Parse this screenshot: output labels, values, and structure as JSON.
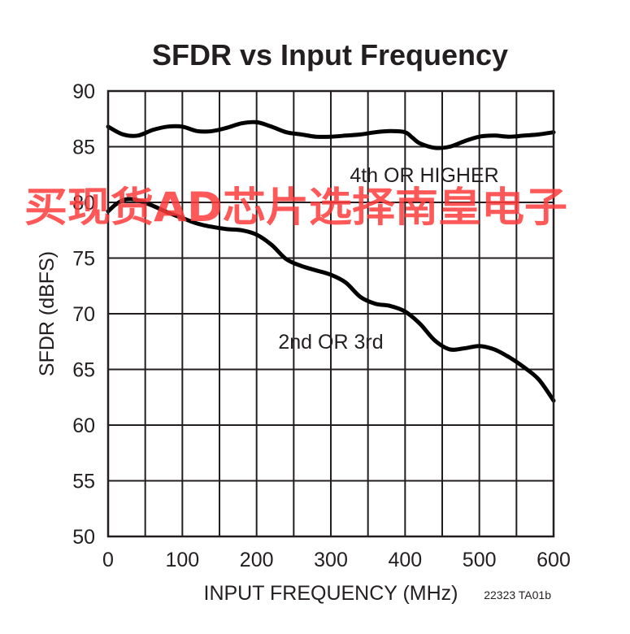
{
  "chart_data": {
    "type": "line",
    "title": "SFDR vs Input Frequency",
    "xlabel": "INPUT FREQUENCY (MHz)",
    "ylabel": "SFDR (dBFS)",
    "xlim": [
      0,
      600
    ],
    "ylim": [
      50,
      90
    ],
    "xticks": [
      "0",
      "100",
      "200",
      "300",
      "400",
      "500",
      "600"
    ],
    "yticks": [
      "50",
      "55",
      "60",
      "65",
      "70",
      "75",
      "80",
      "85",
      "90"
    ],
    "grid": true,
    "series": [
      {
        "name": "4th OR HIGHER",
        "x": [
          0,
          20,
          40,
          60,
          80,
          100,
          120,
          140,
          160,
          180,
          200,
          220,
          240,
          260,
          280,
          300,
          320,
          340,
          360,
          380,
          400,
          410,
          420,
          440,
          460,
          480,
          500,
          520,
          540,
          560,
          580,
          600
        ],
        "y": [
          86.8,
          86.1,
          86.0,
          86.5,
          86.8,
          86.8,
          86.4,
          86.4,
          86.7,
          87.1,
          87.2,
          86.8,
          86.3,
          86.1,
          85.9,
          85.9,
          86.0,
          86.1,
          86.3,
          86.4,
          86.3,
          85.8,
          85.3,
          84.9,
          85.0,
          85.5,
          85.9,
          86.0,
          85.9,
          86.0,
          86.1,
          86.3
        ]
      },
      {
        "name": "2nd OR 3rd",
        "x": [
          0,
          10,
          20,
          30,
          40,
          60,
          80,
          100,
          120,
          140,
          160,
          180,
          200,
          220,
          240,
          260,
          280,
          300,
          320,
          340,
          360,
          380,
          400,
          420,
          440,
          460,
          480,
          500,
          520,
          540,
          560,
          580,
          600
        ],
        "y": [
          79.2,
          79.8,
          80.2,
          80.3,
          80.2,
          79.7,
          79.1,
          78.6,
          78.1,
          77.8,
          77.6,
          77.5,
          77.1,
          76.2,
          74.9,
          74.3,
          73.9,
          73.5,
          72.8,
          71.5,
          70.9,
          70.7,
          70.2,
          69.1,
          67.6,
          66.8,
          66.9,
          67.1,
          66.8,
          66.1,
          65.2,
          64.1,
          62.2
        ]
      }
    ],
    "annotations": [
      "4th OR HIGHER",
      "2nd OR 3rd"
    ],
    "figure_code": "22323 TA01b"
  },
  "watermark": "买现货AD芯片选择南皇电子",
  "colors": {
    "line": "#000000",
    "grid": "#231f20",
    "watermark": "#ff3b3b"
  }
}
